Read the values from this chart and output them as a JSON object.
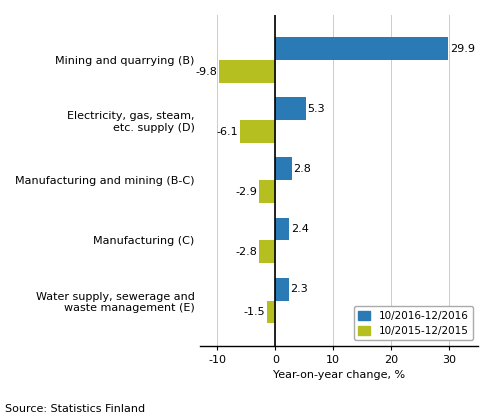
{
  "categories": [
    "Water supply, sewerage and\nwaste management (E)",
    "Manufacturing (C)",
    "Manufacturing and mining (B-C)",
    "Electricity, gas, steam,\netc. supply (D)",
    "Mining and quarrying (B)"
  ],
  "values_2016": [
    2.3,
    2.4,
    2.8,
    5.3,
    29.9
  ],
  "values_2015": [
    -1.5,
    -2.8,
    -2.9,
    -6.1,
    -9.8
  ],
  "color_2016": "#2a7ab5",
  "color_2015": "#b5c020",
  "legend_labels": [
    "10/2016-12/2016",
    "10/2015-12/2015"
  ],
  "xlabel": "Year-on-year change, %",
  "source": "Source: Statistics Finland",
  "xlim": [
    -13,
    35
  ],
  "xticks": [
    -10,
    0,
    10,
    20,
    30
  ],
  "bar_height": 0.38,
  "label_fontsize": 8,
  "tick_fontsize": 8,
  "source_fontsize": 8
}
